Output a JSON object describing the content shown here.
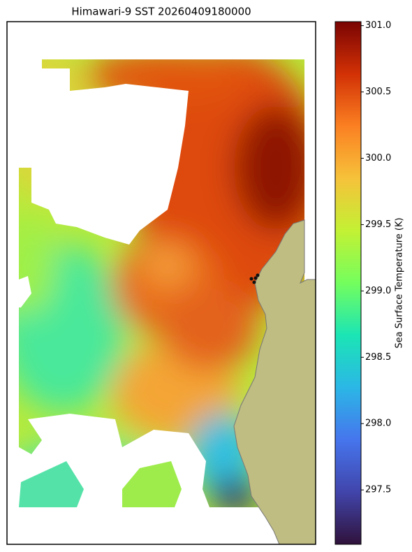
{
  "chart_data": {
    "type": "map",
    "title": "Himawari-9 SST 20260409180000",
    "colorbar": {
      "label": "Sea Surface Temperature (K)",
      "lim": [
        297.09,
        301.03
      ],
      "ticks": [
        {
          "value": 297.5,
          "label": "297.5"
        },
        {
          "value": 298,
          "label": "298.0"
        },
        298.5,
        {
          "value": 299,
          "label": "299.0"
        },
        299.5,
        {
          "value": 300,
          "label": "300.0"
        },
        300.5,
        {
          "value": 301,
          "label": "301.0"
        }
      ]
    }
  }
}
